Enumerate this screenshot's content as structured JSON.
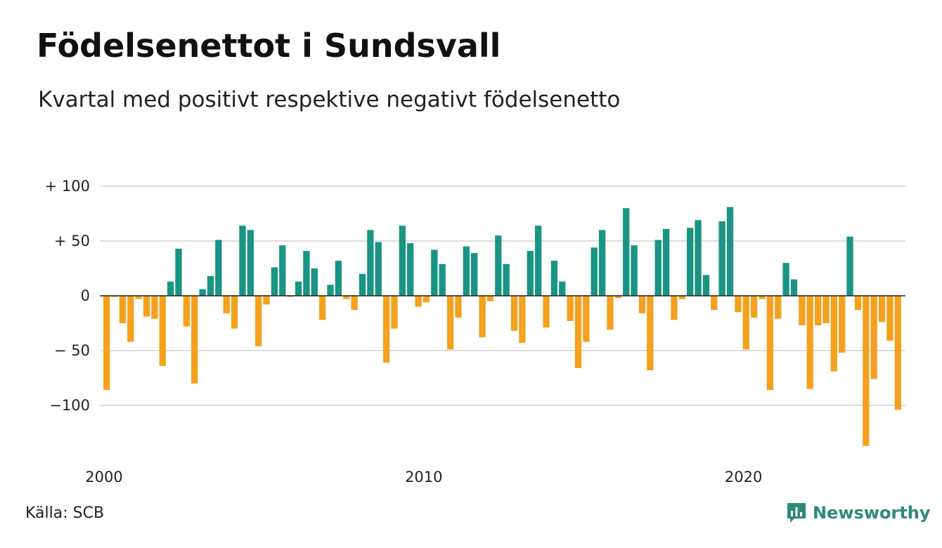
{
  "chart_data": {
    "type": "bar",
    "title": "Födelsenettot i Sundsvall",
    "subtitle": "Kvartal med positivt respektive negativt födelsenetto",
    "x_start_year": 2000,
    "x_tick_labels": [
      "2000",
      "2010",
      "2020"
    ],
    "y_tick_values": [
      100,
      50,
      0,
      -50,
      -100
    ],
    "y_tick_labels": [
      "+ 100",
      "+  50",
      "0",
      "− 50",
      "−100"
    ],
    "ylim": [
      -140,
      100
    ],
    "grid": true,
    "positive_color": "#1a9484",
    "negative_color": "#f5a11e",
    "values": [
      -86,
      -1,
      -25,
      -42,
      -3,
      -19,
      -21,
      -64,
      13,
      43,
      -28,
      -80,
      6,
      18,
      51,
      -16,
      -30,
      64,
      60,
      -46,
      -8,
      26,
      46,
      -1,
      13,
      41,
      25,
      -22,
      10,
      32,
      -3,
      -13,
      20,
      60,
      49,
      -61,
      -30,
      64,
      48,
      -10,
      -6,
      42,
      29,
      -49,
      -20,
      45,
      39,
      -38,
      -5,
      55,
      29,
      -32,
      -43,
      41,
      64,
      -29,
      32,
      13,
      -23,
      -66,
      -42,
      44,
      60,
      -31,
      -2,
      80,
      46,
      -16,
      -68,
      51,
      61,
      -22,
      -3,
      62,
      69,
      19,
      -13,
      68,
      81,
      -15,
      -49,
      -20,
      -3,
      -86,
      -21,
      30,
      15,
      -27,
      -85,
      -27,
      -25,
      -69,
      -52,
      54,
      -13,
      -137,
      -76,
      -24,
      -41,
      -104
    ]
  },
  "footer": {
    "source": "Källa: SCB",
    "brand": "Newsworthy"
  }
}
